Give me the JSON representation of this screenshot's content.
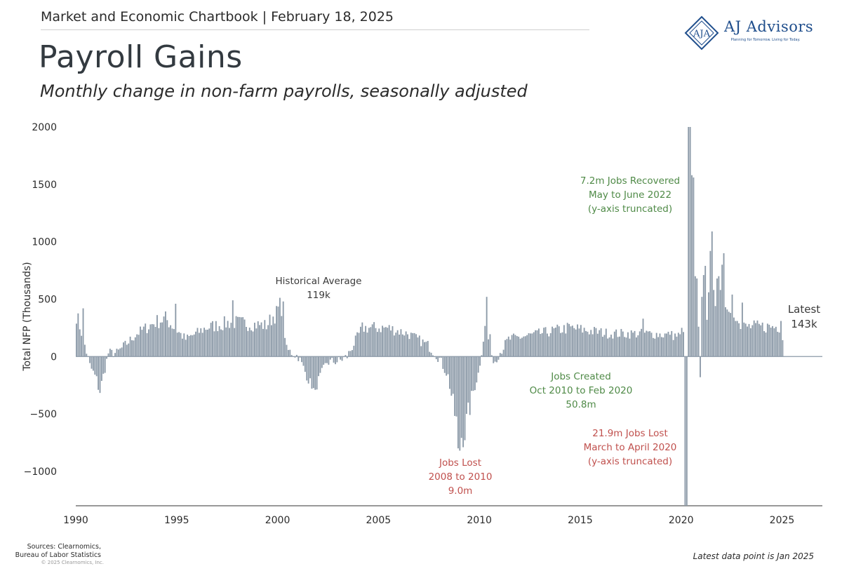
{
  "header": {
    "chartbook": "Market and Economic Chartbook | February 18, 2025"
  },
  "brand": {
    "name": "AJ Advisors",
    "tagline": "Planning for Tomorrow. Living for Today.",
    "color": "#1f4e8c"
  },
  "page": {
    "title": "Payroll Gains",
    "subtitle": "Monthly change in non-farm payrolls, seasonally adjusted",
    "sources": [
      "Sources: Clearnomics,",
      "Bureau of Labor Statistics"
    ],
    "copyright": "© 2025 Clearnomics, Inc.",
    "footnote": "Latest data point is Jan 2025"
  },
  "chart_data": {
    "type": "bar",
    "ylabel": "Total NFP (Thousands)",
    "xlabel": "",
    "ylim": [
      -1300,
      2000
    ],
    "xlim": [
      1990,
      2027
    ],
    "y_ticks": [
      2000,
      1500,
      1000,
      500,
      0,
      -500,
      -1000
    ],
    "y_tick_labels": [
      "2000",
      "1500",
      "1000",
      "500",
      "0",
      "−500",
      "−1000"
    ],
    "x_ticks": [
      1990,
      1995,
      2000,
      2005,
      2010,
      2015,
      2020,
      2025
    ],
    "x_tick_labels": [
      "1990",
      "1995",
      "2000",
      "2005",
      "2010",
      "2015",
      "2020",
      "2025"
    ],
    "bar_color": "#8c9aa8",
    "y_axis_truncated": true,
    "series": [
      {
        "name": "",
        "start": "1990-01",
        "end": "2025-01",
        "anchors": [
          [
            "1990-01",
            370
          ],
          [
            "1990-06",
            100
          ],
          [
            "1990-09",
            -80
          ],
          [
            "1991-01",
            -200
          ],
          [
            "1991-03",
            -300
          ],
          [
            "1991-08",
            30
          ],
          [
            "1992-01",
            30
          ],
          [
            "1992-06",
            100
          ],
          [
            "1993-01",
            200
          ],
          [
            "1993-12",
            300
          ],
          [
            "1994-06",
            330
          ],
          [
            "1995-06",
            150
          ],
          [
            "1996-06",
            250
          ],
          [
            "1997-09",
            300
          ],
          [
            "1999-06",
            270
          ],
          [
            "2000-03",
            450
          ],
          [
            "2000-06",
            60
          ],
          [
            "2001-01",
            0
          ],
          [
            "2001-04",
            -100
          ],
          [
            "2001-10",
            -300
          ],
          [
            "2002-06",
            -50
          ],
          [
            "2003-01",
            -40
          ],
          [
            "2003-06",
            0
          ],
          [
            "2004-03",
            250
          ],
          [
            "2005-06",
            250
          ],
          [
            "2006-06",
            200
          ],
          [
            "2007-06",
            100
          ],
          [
            "2008-01",
            -20
          ],
          [
            "2008-06",
            -170
          ],
          [
            "2008-10",
            -500
          ],
          [
            "2009-01",
            -700
          ],
          [
            "2009-04",
            -650
          ],
          [
            "2009-09",
            -300
          ],
          [
            "2009-12",
            -150
          ],
          [
            "2010-05",
            350
          ],
          [
            "2010-09",
            -50
          ],
          [
            "2011-06",
            150
          ],
          [
            "2014-06",
            250
          ],
          [
            "2016-06",
            200
          ],
          [
            "2018-06",
            200
          ],
          [
            "2019-12",
            180
          ],
          [
            "2020-02",
            260
          ]
        ],
        "events": [
          [
            "1990-05",
            420
          ],
          [
            "1991-02",
            -290
          ],
          [
            "1994-12",
            460
          ],
          [
            "1997-10",
            490
          ],
          [
            "1999-12",
            440
          ],
          [
            "2000-04",
            480
          ],
          [
            "2001-09",
            -280
          ],
          [
            "2001-11",
            -290
          ],
          [
            "2008-12",
            -800
          ],
          [
            "2009-01",
            -820
          ],
          [
            "2009-03",
            -790
          ],
          [
            "2010-05",
            520
          ],
          [
            "2010-06",
            150
          ],
          [
            "2018-02",
            330
          ],
          [
            "2019-06",
            190
          ],
          [
            "2020-03",
            -1400
          ],
          [
            "2020-04",
            -1400
          ],
          [
            "2020-05",
            2000
          ],
          [
            "2020-06",
            2000
          ],
          [
            "2020-07",
            1580
          ],
          [
            "2020-08",
            1560
          ],
          [
            "2020-09",
            700
          ],
          [
            "2020-10",
            680
          ],
          [
            "2020-11",
            260
          ],
          [
            "2020-12",
            -180
          ],
          [
            "2021-01",
            520
          ],
          [
            "2021-02",
            710
          ],
          [
            "2021-03",
            790
          ],
          [
            "2021-04",
            320
          ],
          [
            "2021-05",
            560
          ],
          [
            "2021-06",
            920
          ],
          [
            "2021-07",
            1090
          ],
          [
            "2021-08",
            580
          ],
          [
            "2021-09",
            440
          ],
          [
            "2021-10",
            680
          ],
          [
            "2021-11",
            700
          ],
          [
            "2021-12",
            580
          ],
          [
            "2022-01",
            800
          ],
          [
            "2022-02",
            900
          ],
          [
            "2022-03",
            430
          ],
          [
            "2022-04",
            410
          ],
          [
            "2022-05",
            390
          ],
          [
            "2022-06",
            380
          ],
          [
            "2022-07",
            540
          ],
          [
            "2022-08",
            340
          ],
          [
            "2022-09",
            310
          ],
          [
            "2022-10",
            310
          ],
          [
            "2022-11",
            290
          ],
          [
            "2022-12",
            240
          ],
          [
            "2023-01",
            470
          ],
          [
            "2024-12",
            310
          ],
          [
            "2025-01",
            143
          ]
        ]
      }
    ],
    "annotations": [
      {
        "id": "historical-average",
        "lines": [
          "Historical Average",
          "119k"
        ],
        "color": "gray"
      },
      {
        "id": "jobs-recovered",
        "lines": [
          "7.2m Jobs Recovered",
          "May to June 2022",
          "(y-axis truncated)"
        ],
        "color": "green"
      },
      {
        "id": "jobs-created",
        "lines": [
          "Jobs Created",
          "Oct 2010 to Feb 2020",
          "50.8m"
        ],
        "color": "green"
      },
      {
        "id": "jobs-lost-2008",
        "lines": [
          "Jobs Lost",
          "2008 to 2010",
          "9.0m"
        ],
        "color": "red"
      },
      {
        "id": "jobs-lost-2020",
        "lines": [
          "21.9m Jobs Lost",
          "March to April 2020",
          "(y-axis truncated)"
        ],
        "color": "red"
      },
      {
        "id": "latest",
        "lines": [
          "Latest",
          "143k"
        ],
        "color": "gray"
      }
    ]
  }
}
